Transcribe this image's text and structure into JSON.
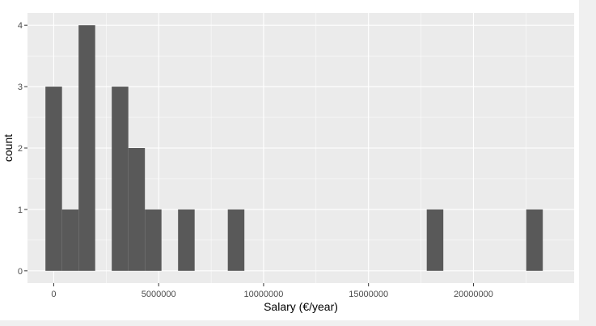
{
  "chart_data": {
    "type": "bar",
    "subtype": "histogram",
    "xlabel": "Salary (€/year)",
    "ylabel": "count",
    "xlim": [
      -1250000,
      24800000
    ],
    "ylim": [
      -0.2,
      4.2
    ],
    "x_ticks": [
      0,
      5000000,
      10000000,
      15000000,
      20000000
    ],
    "x_tick_labels": [
      "0",
      "5000000",
      "10000000",
      "15000000",
      "20000000"
    ],
    "y_ticks": [
      0,
      1,
      2,
      3,
      4
    ],
    "y_tick_labels": [
      "0",
      "1",
      "2",
      "3",
      "4"
    ],
    "bin_width": 790000,
    "bins": [
      {
        "center": 0,
        "count": 3
      },
      {
        "center": 790000,
        "count": 1
      },
      {
        "center": 1580000,
        "count": 4
      },
      {
        "center": 3160000,
        "count": 3
      },
      {
        "center": 3950000,
        "count": 2
      },
      {
        "center": 4740000,
        "count": 1
      },
      {
        "center": 6320000,
        "count": 1
      },
      {
        "center": 8690000,
        "count": 1
      },
      {
        "center": 18170000,
        "count": 1
      },
      {
        "center": 22910000,
        "count": 1
      }
    ],
    "grid": true,
    "colors": {
      "panel": "#ebebeb",
      "grid": "#ffffff",
      "bar": "#595959",
      "tick_text": "#4d4d4d",
      "tick_mark": "#333333"
    }
  }
}
